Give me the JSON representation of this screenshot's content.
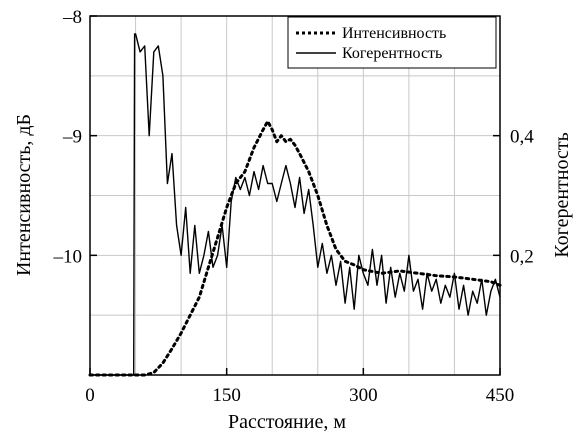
{
  "chart_data": {
    "type": "line",
    "title": "",
    "xlabel": "Расстояние, м",
    "ylabel_left": "Интенсивность, дБ",
    "ylabel_right": "Когерентность",
    "xlim": [
      0,
      450
    ],
    "x_ticks": [
      0,
      150,
      300,
      450
    ],
    "x_tick_labels": [
      "0",
      "150",
      "300",
      "450"
    ],
    "ylim_left": [
      -11,
      -8
    ],
    "y_left_ticks": [
      -8,
      -9,
      -10
    ],
    "y_left_tick_labels": [
      "–8",
      "–9",
      "–10"
    ],
    "ylim_right": [
      0,
      0.6
    ],
    "y_right_ticks": [
      0.2,
      0.4
    ],
    "y_right_tick_labels": [
      "0,2",
      "0,4"
    ],
    "grid": true,
    "legend_position": "top-right",
    "series": [
      {
        "name": "Интенсивность",
        "axis": "left",
        "style": "dotted",
        "x": [
          0,
          20,
          40,
          50,
          60,
          70,
          80,
          90,
          100,
          110,
          120,
          130,
          140,
          150,
          160,
          170,
          180,
          190,
          195,
          200,
          205,
          210,
          215,
          220,
          225,
          230,
          240,
          250,
          260,
          270,
          280,
          290,
          300,
          320,
          340,
          360,
          380,
          400,
          420,
          440,
          450
        ],
        "y": [
          -11.0,
          -11.0,
          -11.0,
          -11.0,
          -11.0,
          -10.98,
          -10.9,
          -10.78,
          -10.65,
          -10.5,
          -10.35,
          -10.1,
          -9.85,
          -9.6,
          -9.4,
          -9.3,
          -9.1,
          -8.95,
          -8.88,
          -8.95,
          -9.05,
          -9.0,
          -9.05,
          -9.03,
          -9.08,
          -9.15,
          -9.3,
          -9.5,
          -9.75,
          -9.95,
          -10.05,
          -10.08,
          -10.12,
          -10.15,
          -10.13,
          -10.15,
          -10.17,
          -10.18,
          -10.2,
          -10.22,
          -10.25
        ]
      },
      {
        "name": "Когерентность",
        "axis": "right",
        "style": "solid",
        "x": [
          0,
          48,
          49,
          50,
          55,
          60,
          65,
          70,
          75,
          80,
          85,
          90,
          95,
          100,
          105,
          110,
          115,
          120,
          125,
          130,
          135,
          140,
          145,
          150,
          155,
          160,
          165,
          170,
          175,
          180,
          185,
          190,
          195,
          200,
          205,
          210,
          215,
          220,
          225,
          230,
          235,
          240,
          245,
          250,
          255,
          260,
          265,
          270,
          275,
          280,
          285,
          290,
          295,
          300,
          305,
          310,
          315,
          320,
          325,
          330,
          335,
          340,
          345,
          350,
          355,
          360,
          365,
          370,
          375,
          380,
          385,
          390,
          395,
          400,
          405,
          410,
          415,
          420,
          425,
          430,
          435,
          440,
          445,
          450
        ],
        "y": [
          0.0,
          0.0,
          0.57,
          0.57,
          0.54,
          0.55,
          0.4,
          0.54,
          0.55,
          0.5,
          0.32,
          0.37,
          0.25,
          0.2,
          0.28,
          0.17,
          0.25,
          0.17,
          0.2,
          0.24,
          0.18,
          0.2,
          0.25,
          0.18,
          0.29,
          0.33,
          0.31,
          0.33,
          0.3,
          0.34,
          0.31,
          0.35,
          0.32,
          0.32,
          0.29,
          0.32,
          0.35,
          0.32,
          0.28,
          0.33,
          0.27,
          0.31,
          0.25,
          0.18,
          0.22,
          0.17,
          0.2,
          0.15,
          0.19,
          0.12,
          0.18,
          0.11,
          0.2,
          0.17,
          0.15,
          0.21,
          0.15,
          0.2,
          0.12,
          0.18,
          0.13,
          0.17,
          0.14,
          0.2,
          0.14,
          0.16,
          0.11,
          0.17,
          0.14,
          0.16,
          0.12,
          0.15,
          0.13,
          0.17,
          0.11,
          0.15,
          0.1,
          0.14,
          0.12,
          0.16,
          0.1,
          0.14,
          0.16,
          0.13
        ]
      }
    ]
  }
}
